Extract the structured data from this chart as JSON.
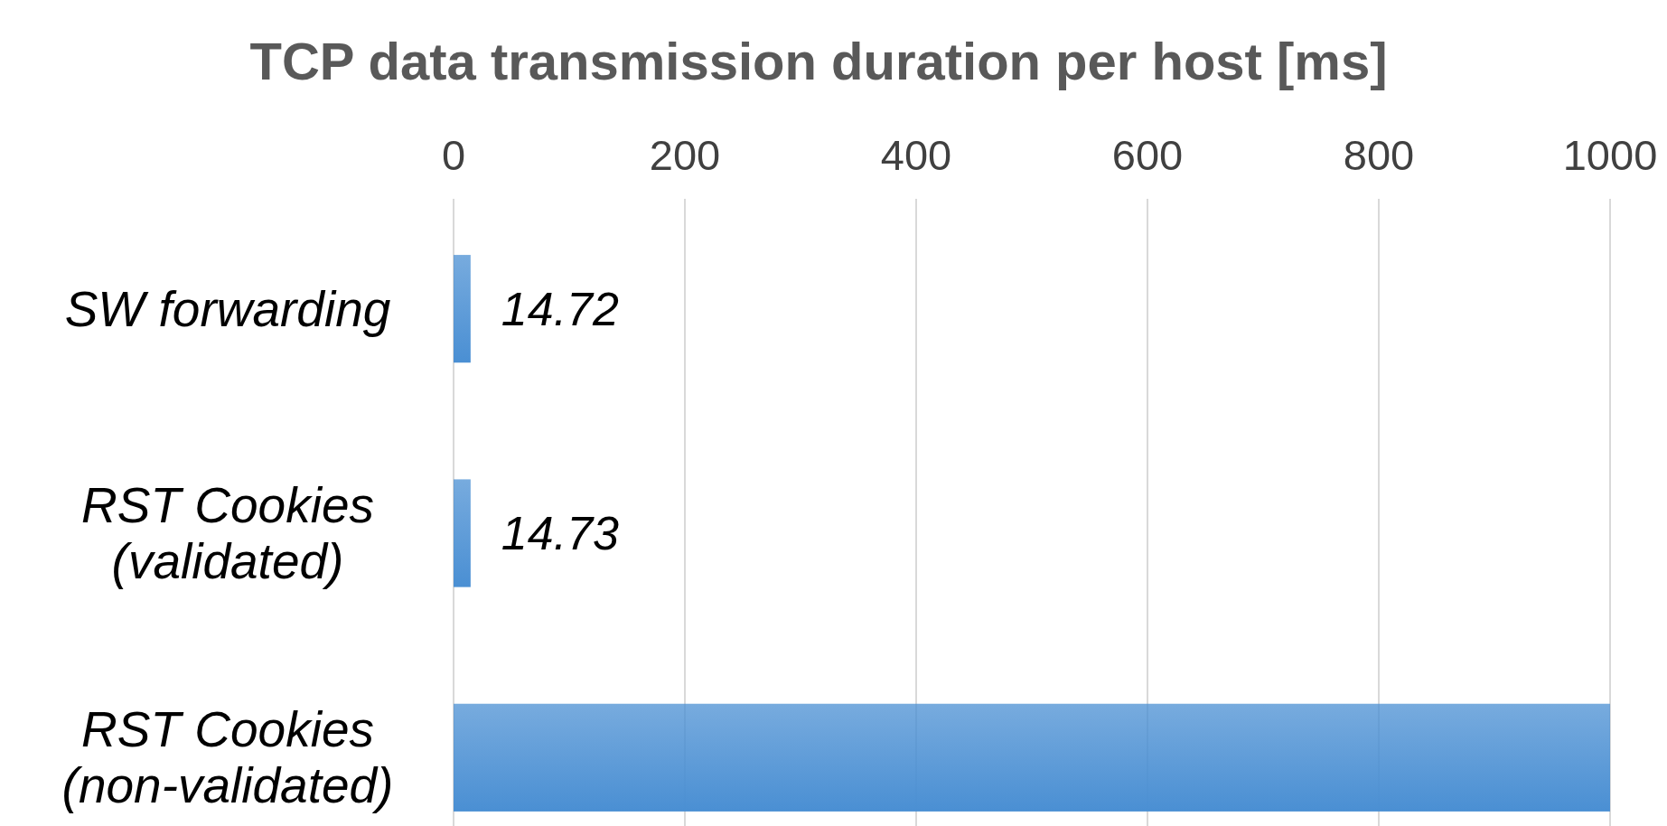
{
  "chart_data": {
    "type": "bar",
    "orientation": "horizontal",
    "title": "TCP data transmission duration per host [ms]",
    "categories": [
      "SW forwarding",
      "RST Cookies\n(validated)",
      "RST Cookies\n(non-validated)"
    ],
    "values": [
      14.72,
      14.73,
      1000
    ],
    "value_labels": [
      "14.72",
      "14.73",
      null
    ],
    "color": "#4a8fd3",
    "xlim": [
      0,
      1000
    ],
    "xticks": [
      0,
      200,
      400,
      600,
      800,
      1000
    ],
    "grid": "x"
  }
}
